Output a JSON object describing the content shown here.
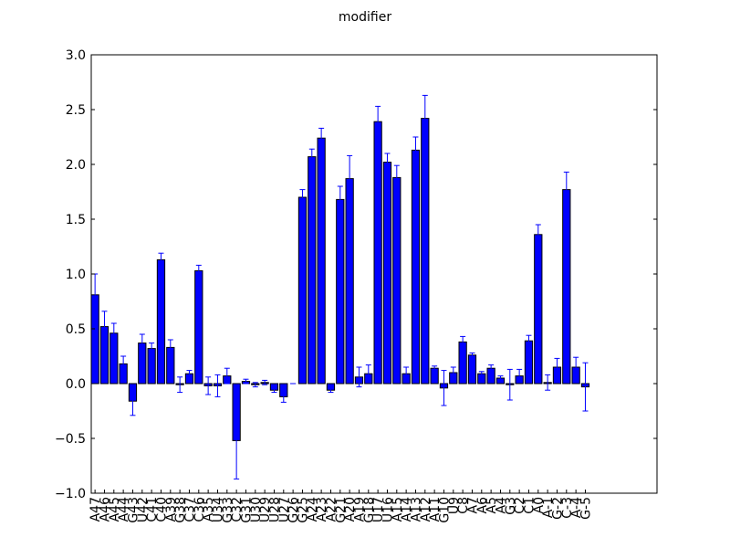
{
  "chart_data": {
    "type": "bar",
    "title": "modifier",
    "categories": [
      "A47",
      "A46",
      "A45",
      "A44",
      "G43",
      "U42",
      "C41",
      "C40",
      "A39",
      "G38",
      "C37",
      "C36",
      "A35",
      "U34",
      "G33",
      "C32",
      "G31",
      "U30",
      "U29",
      "U28",
      "U27",
      "G26",
      "G25",
      "A24",
      "A23",
      "A22",
      "G21",
      "A20",
      "A19",
      "G18",
      "U17",
      "U16",
      "A15",
      "A14",
      "A13",
      "A12",
      "A11",
      "G10",
      "U9",
      "C8",
      "A7",
      "A6",
      "A5",
      "A4",
      "G3",
      "C2",
      "C1",
      "A0",
      "A-1",
      "G-2",
      "C-3",
      "A-4",
      "G-5"
    ],
    "values": [
      0.81,
      0.52,
      0.46,
      0.18,
      -0.16,
      0.37,
      0.32,
      1.13,
      0.33,
      -0.01,
      0.09,
      1.03,
      -0.02,
      -0.02,
      0.07,
      -0.52,
      0.02,
      -0.01,
      0.01,
      -0.06,
      -0.12,
      0.0,
      1.7,
      2.07,
      2.24,
      -0.06,
      1.68,
      1.87,
      0.06,
      0.09,
      2.39,
      2.02,
      1.88,
      0.09,
      2.13,
      2.42,
      0.14,
      -0.04,
      0.1,
      0.38,
      0.26,
      0.09,
      0.14,
      0.05,
      -0.01,
      0.07,
      0.39,
      1.36,
      0.01,
      0.15,
      1.77,
      0.15,
      -0.03
    ],
    "errors": [
      0.19,
      0.14,
      0.09,
      0.07,
      0.13,
      0.08,
      0.05,
      0.06,
      0.07,
      0.07,
      0.03,
      0.05,
      0.08,
      0.1,
      0.07,
      0.35,
      0.02,
      0.02,
      0.02,
      0.02,
      0.05,
      0.0,
      0.07,
      0.07,
      0.09,
      0.02,
      0.12,
      0.21,
      0.09,
      0.08,
      0.14,
      0.08,
      0.11,
      0.06,
      0.12,
      0.21,
      0.02,
      0.16,
      0.05,
      0.05,
      0.02,
      0.02,
      0.03,
      0.02,
      0.14,
      0.06,
      0.05,
      0.09,
      0.07,
      0.08,
      0.16,
      0.09,
      0.22
    ],
    "color": "#0000ff",
    "error_color": "#0000ff",
    "xlim": [
      0,
      60
    ],
    "ylim": [
      -1,
      3
    ],
    "yticks": [
      {
        "value": -1,
        "label": "−1.0"
      },
      {
        "value": -0.5,
        "label": "−0.5"
      },
      {
        "value": 0,
        "label": "0.0"
      },
      {
        "value": 0.5,
        "label": "0.5"
      },
      {
        "value": 1,
        "label": "1.0"
      },
      {
        "value": 1.5,
        "label": "1.5"
      },
      {
        "value": 2,
        "label": "2.0"
      },
      {
        "value": 2.5,
        "label": "2.5"
      },
      {
        "value": 3,
        "label": "3.0"
      }
    ],
    "grid": false
  }
}
